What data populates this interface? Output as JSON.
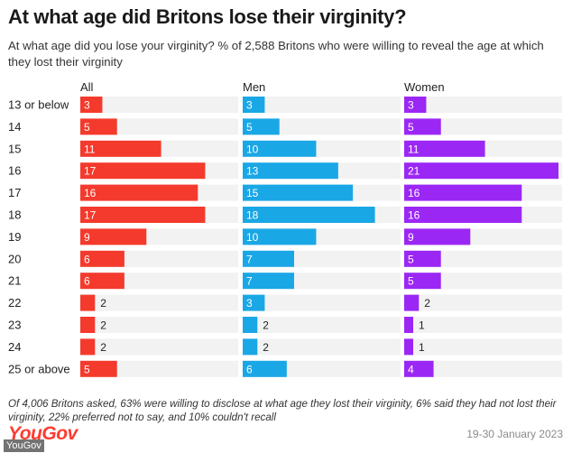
{
  "title": "At what age did Britons lose their virginity?",
  "subtitle": "At what age did you lose your virginity? % of 2,588 Britons who were willing to reveal the age at which they lost their virginity",
  "footnote": "Of 4,006 Britons asked, 63% were willing to disclose at what age they lost their virginity, 6% said they had not lost their virginity, 22% preferred not to say, and 10% couldn't recall",
  "brand": "YouGov",
  "date": "19-30 January 2023",
  "watermark": "YouGov",
  "colors": {
    "all": "#f43a2c",
    "men": "#1aa7e6",
    "women": "#9b27f5",
    "track": "#f2f2f2"
  },
  "chart_data": {
    "type": "bar",
    "orientation": "horizontal",
    "categories": [
      "13 or below",
      "14",
      "15",
      "16",
      "17",
      "18",
      "19",
      "20",
      "21",
      "22",
      "23",
      "24",
      "25 or above"
    ],
    "series": [
      {
        "name": "All",
        "values": [
          3,
          5,
          11,
          17,
          16,
          17,
          9,
          6,
          6,
          2,
          2,
          2,
          5
        ]
      },
      {
        "name": "Men",
        "values": [
          3,
          5,
          10,
          13,
          15,
          18,
          10,
          7,
          7,
          3,
          2,
          2,
          6
        ]
      },
      {
        "name": "Women",
        "values": [
          3,
          5,
          11,
          21,
          16,
          16,
          9,
          5,
          5,
          2,
          1,
          1,
          4
        ]
      }
    ],
    "xlim": [
      0,
      21
    ],
    "legend": "panel-headers"
  }
}
